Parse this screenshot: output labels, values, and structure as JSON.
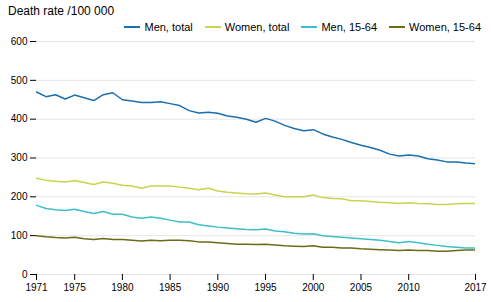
{
  "chart_data": {
    "type": "line",
    "title": "Death rate /100 000",
    "x": [
      1971,
      1972,
      1973,
      1974,
      1975,
      1976,
      1977,
      1978,
      1979,
      1980,
      1981,
      1982,
      1983,
      1984,
      1985,
      1986,
      1987,
      1988,
      1989,
      1990,
      1991,
      1992,
      1993,
      1994,
      1995,
      1996,
      1997,
      1998,
      1999,
      2000,
      2001,
      2002,
      2003,
      2004,
      2005,
      2006,
      2007,
      2008,
      2009,
      2010,
      2011,
      2012,
      2013,
      2014,
      2015,
      2016,
      2017
    ],
    "series": [
      {
        "name": "Men, total",
        "color": "#1a6faf",
        "values": [
          470,
          458,
          463,
          452,
          462,
          455,
          448,
          463,
          468,
          450,
          447,
          443,
          443,
          445,
          440,
          435,
          422,
          416,
          418,
          415,
          408,
          405,
          400,
          392,
          402,
          395,
          384,
          376,
          370,
          373,
          362,
          354,
          348,
          340,
          333,
          327,
          320,
          310,
          305,
          308,
          305,
          298,
          295,
          290,
          290,
          287,
          285
        ]
      },
      {
        "name": "Women, total",
        "color": "#c8d44e",
        "values": [
          248,
          243,
          240,
          238,
          242,
          237,
          232,
          238,
          235,
          230,
          228,
          222,
          228,
          228,
          228,
          225,
          222,
          218,
          222,
          215,
          212,
          210,
          208,
          207,
          210,
          205,
          200,
          200,
          200,
          205,
          198,
          196,
          195,
          190,
          190,
          188,
          186,
          185,
          183,
          185,
          183,
          182,
          180,
          180,
          182,
          183,
          183
        ]
      },
      {
        "name": "Men, 15-64",
        "color": "#3dbfc9",
        "values": [
          178,
          170,
          167,
          165,
          168,
          162,
          157,
          162,
          155,
          155,
          148,
          145,
          148,
          145,
          140,
          135,
          135,
          128,
          125,
          122,
          120,
          118,
          116,
          115,
          117,
          112,
          110,
          106,
          104,
          105,
          100,
          98,
          96,
          94,
          92,
          90,
          88,
          85,
          82,
          85,
          82,
          78,
          75,
          72,
          70,
          68,
          68
        ]
      },
      {
        "name": "Women, 15-64",
        "color": "#6b6b18",
        "values": [
          100,
          97,
          95,
          94,
          96,
          92,
          90,
          93,
          90,
          90,
          88,
          86,
          88,
          87,
          88,
          88,
          87,
          84,
          84,
          82,
          80,
          78,
          78,
          77,
          78,
          76,
          74,
          73,
          72,
          74,
          70,
          70,
          68,
          68,
          66,
          65,
          64,
          63,
          62,
          63,
          62,
          62,
          60,
          60,
          62,
          63,
          63
        ]
      }
    ],
    "xlim": [
      1971,
      2017
    ],
    "xticks": [
      1971,
      1975,
      1980,
      1985,
      1990,
      1995,
      2000,
      2005,
      2010,
      2017
    ],
    "ylim": [
      0,
      600
    ],
    "yticks": [
      0,
      100,
      200,
      300,
      400,
      500,
      600
    ],
    "grid": true,
    "legend": "upper right"
  }
}
